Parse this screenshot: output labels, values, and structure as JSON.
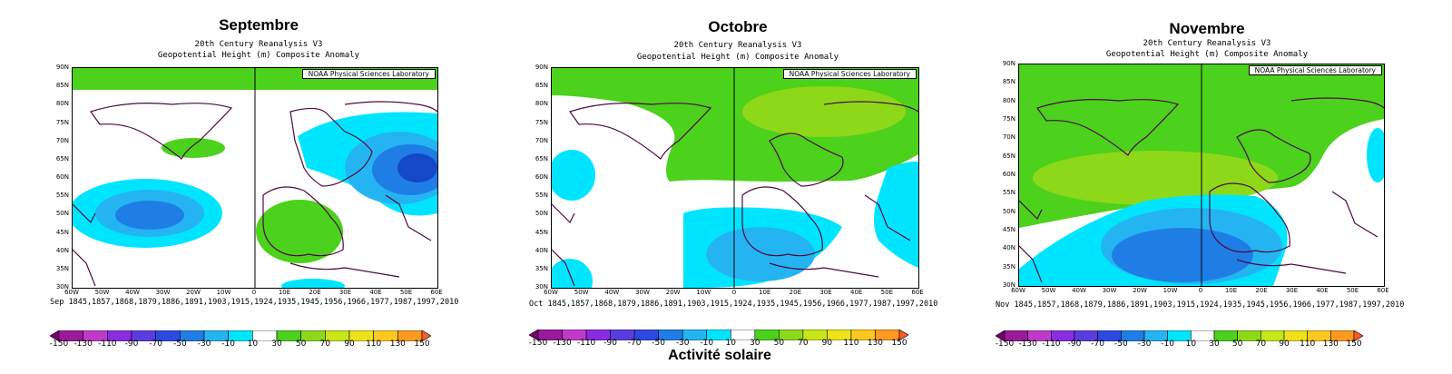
{
  "dataset": "20th Century Reanalysis V3",
  "variable": "Geopotential Height (m) Composite Anomaly",
  "credit": "NOAA Physical Sciences Laboratory",
  "caption": "Activité solaire",
  "lat_ticks": [
    "90N",
    "85N",
    "80N",
    "75N",
    "70N",
    "65N",
    "60N",
    "55N",
    "50N",
    "45N",
    "40N",
    "35N",
    "30N"
  ],
  "lon_ticks": [
    "60W",
    "50W",
    "40W",
    "30W",
    "20W",
    "10W",
    "0",
    "10E",
    "20E",
    "30E",
    "40E",
    "50E",
    "60E"
  ],
  "colorbar_labels": [
    "-150",
    "-130",
    "-110",
    "-90",
    "-70",
    "-50",
    "-30",
    "-10",
    "10",
    "30",
    "50",
    "70",
    "90",
    "110",
    "130",
    "150"
  ],
  "colors": {
    "pos_light": "#4cd11c",
    "pos_mid": "#8ed81a",
    "neg_light": "#00e5ff",
    "neg_mid": "#25b4f2",
    "neg_strong": "#1e7ee6",
    "neg_deep": "#1448c8",
    "coast": "#4b0a3f"
  },
  "panels": [
    {
      "title": "Septembre",
      "years": "Sep 1845,1857,1868,1879,1886,1891,1903,1915,1924,1935,1945,1956,1966,1977,1987,1997,2010"
    },
    {
      "title": "Octobre",
      "years": "Oct 1845,1857,1868,1879,1886,1891,1903,1915,1924,1935,1945,1956,1966,1977,1987,1997,2010"
    },
    {
      "title": "Novembre",
      "years": "Nov 1845,1857,1868,1879,1886,1891,1903,1915,1924,1935,1945,1956,1966,1977,1987,1997,2010"
    }
  ]
}
